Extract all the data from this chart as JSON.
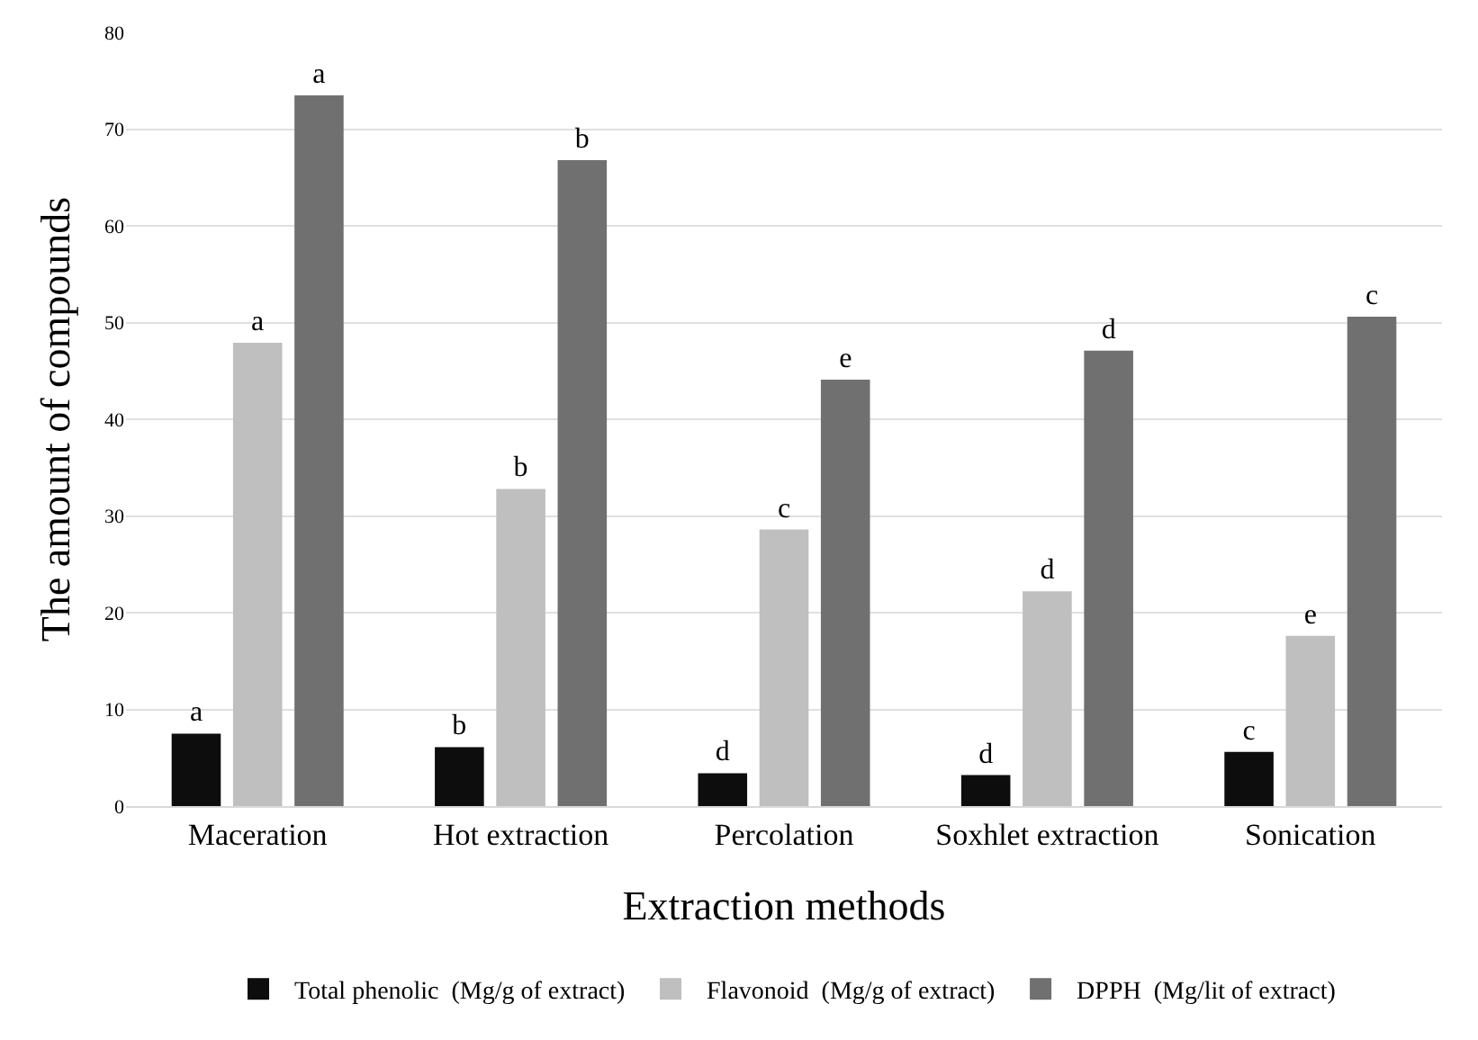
{
  "chart_data": {
    "type": "bar",
    "xlabel": "Extraction methods",
    "ylabel": "The amount of compounds",
    "categories": [
      "Maceration",
      "Hot extraction",
      "Percolation",
      "Soxhlet extraction",
      "Sonication"
    ],
    "series": [
      {
        "name": "Total phenolic  (Mg/g of extract)",
        "color": "#0d0d0d",
        "values": [
          7.5,
          6.1,
          3.4,
          3.2,
          5.6
        ],
        "value_labels": [
          "a",
          "b",
          "d",
          "d",
          "c"
        ]
      },
      {
        "name": "Flavonoid  (Mg/g of extract)",
        "color": "#bfbfbf",
        "values": [
          47.9,
          32.8,
          28.6,
          22.2,
          17.6
        ],
        "value_labels": [
          "a",
          "b",
          "c",
          "d",
          "e"
        ]
      },
      {
        "name": "DPPH  (Mg/lit of extract)",
        "color": "#707070",
        "values": [
          73.5,
          66.8,
          44.1,
          47.1,
          50.6
        ],
        "value_labels": [
          "a",
          "b",
          "e",
          "d",
          "c"
        ]
      }
    ],
    "ylim": [
      0,
      80
    ],
    "yticks": [
      0,
      10,
      20,
      30,
      40,
      50,
      60,
      70,
      80
    ],
    "grid": "y",
    "legend": "bottom"
  }
}
